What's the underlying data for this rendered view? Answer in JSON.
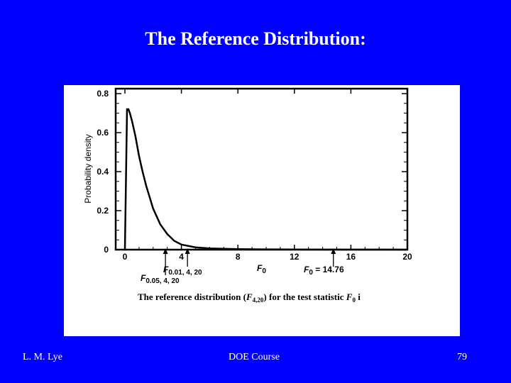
{
  "slide": {
    "title": "The Reference Distribution:",
    "footer_left": "L. M. Lye",
    "footer_center": "DOE  Course",
    "footer_right": "79"
  },
  "chart_data": {
    "type": "line",
    "xlabel": "F",
    "xlabel_sub": "0",
    "ylabel": "Probability density",
    "xlim": [
      0,
      20
    ],
    "ylim": [
      0,
      0.8
    ],
    "x_ticks": [
      0,
      4,
      8,
      12,
      16,
      20
    ],
    "y_ticks": [
      0,
      0.2,
      0.4,
      0.6,
      0.8
    ],
    "series": [
      {
        "x": [
          0,
          0.15,
          0.25,
          0.35,
          0.5,
          0.75,
          1,
          1.25,
          1.5,
          2,
          2.5,
          3,
          3.5,
          4,
          5,
          6,
          8,
          10,
          12,
          14,
          16,
          18,
          20
        ],
        "y": [
          0,
          0.72,
          0.72,
          0.7,
          0.66,
          0.58,
          0.48,
          0.4,
          0.33,
          0.21,
          0.13,
          0.08,
          0.045,
          0.026,
          0.012,
          0.006,
          0.003,
          0.0015,
          0.0008,
          0.0005,
          0.0003,
          0.0002,
          0.0001
        ]
      }
    ],
    "annotations": [
      {
        "x": 2.87,
        "label": "F",
        "sub": "0.05, 4, 20"
      },
      {
        "x": 4.43,
        "label": "F",
        "sub": "0.01, 4, 20"
      },
      {
        "x": 14.76,
        "label": "F",
        "sub": "0",
        "suffix": " = 14.76"
      }
    ],
    "caption": {
      "prefix": "The reference distribution (",
      "dist": "F",
      "dist_sub": "4,20",
      "middle": ") for the test statistic ",
      "stat": "F",
      "stat_sub": "0",
      "suffix": " i"
    }
  }
}
